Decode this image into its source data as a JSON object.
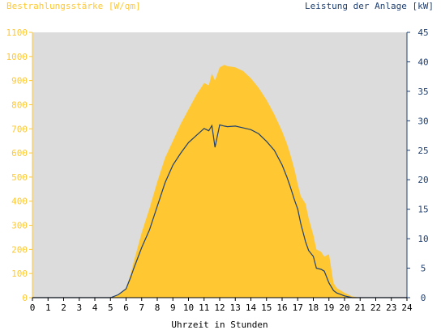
{
  "chart_data": {
    "type": "area",
    "left_title": "Bestrahlungsstärke [W/qm]",
    "right_title": "Leistung der Anlage [kW]",
    "xlabel": "Uhrzeit in Stunden",
    "xlim": [
      0,
      24
    ],
    "x_ticks": [
      0,
      1,
      2,
      3,
      4,
      5,
      6,
      7,
      8,
      9,
      10,
      11,
      12,
      13,
      14,
      15,
      16,
      17,
      18,
      19,
      20,
      21,
      22,
      23,
      24
    ],
    "y_left_lim": [
      0,
      1100
    ],
    "y_left_ticks": [
      0,
      100,
      200,
      300,
      400,
      500,
      600,
      700,
      800,
      900,
      1000,
      1100
    ],
    "y_right_lim": [
      0,
      45
    ],
    "y_right_ticks": [
      0,
      5,
      10,
      15,
      20,
      25,
      30,
      35,
      40,
      45
    ],
    "colors": {
      "irradiance": "#ffc832",
      "power": "#1f3f6f",
      "plot_bg": "#dcdcdc",
      "left_axis": "#ffc832",
      "right_axis": "#1f3f6f"
    },
    "series": [
      {
        "axis": "left",
        "x": [
          0,
          5.0,
          5.5,
          6.0,
          6.3,
          6.5,
          7.0,
          7.5,
          8.0,
          8.5,
          9.0,
          9.5,
          10.0,
          10.5,
          11.0,
          11.3,
          11.5,
          11.7,
          12.0,
          12.3,
          12.5,
          13.0,
          13.5,
          14.0,
          14.5,
          15.0,
          15.5,
          16.0,
          16.3,
          16.5,
          16.8,
          17.0,
          17.2,
          17.5,
          17.7,
          18.0,
          18.2,
          18.5,
          18.7,
          19.0,
          19.3,
          19.5,
          20.0,
          20.5,
          21.0,
          24
        ],
        "values": [
          0,
          0,
          10,
          40,
          100,
          150,
          270,
          370,
          480,
          580,
          650,
          720,
          780,
          840,
          890,
          880,
          930,
          900,
          955,
          965,
          960,
          955,
          940,
          910,
          870,
          820,
          760,
          690,
          640,
          600,
          530,
          470,
          420,
          390,
          330,
          260,
          200,
          190,
          170,
          180,
          60,
          40,
          20,
          5,
          0,
          0
        ]
      },
      {
        "axis": "right",
        "x": [
          0,
          5.0,
          5.5,
          6.0,
          6.3,
          6.5,
          7.0,
          7.5,
          8.0,
          8.5,
          9.0,
          9.5,
          10.0,
          10.5,
          11.0,
          11.3,
          11.5,
          11.7,
          12.0,
          12.3,
          12.5,
          13.0,
          13.5,
          14.0,
          14.5,
          15.0,
          15.5,
          16.0,
          16.3,
          16.5,
          16.8,
          17.0,
          17.2,
          17.5,
          17.7,
          18.0,
          18.2,
          18.5,
          18.7,
          19.0,
          19.3,
          19.5,
          20.0,
          20.5,
          21.0,
          24
        ],
        "values": [
          0,
          0,
          0.5,
          1.5,
          3.5,
          5.0,
          8.5,
          11.5,
          15.5,
          19.5,
          22.5,
          24.5,
          26.3,
          27.5,
          28.7,
          28.3,
          29.2,
          25.5,
          29.3,
          29.1,
          29.0,
          29.1,
          28.8,
          28.5,
          27.8,
          26.5,
          25.0,
          22.5,
          20.5,
          19.0,
          16.5,
          15.0,
          12.5,
          9.5,
          8.0,
          7.0,
          5.0,
          4.8,
          4.5,
          2.5,
          1.2,
          0.8,
          0.3,
          0,
          0,
          0
        ]
      }
    ]
  }
}
